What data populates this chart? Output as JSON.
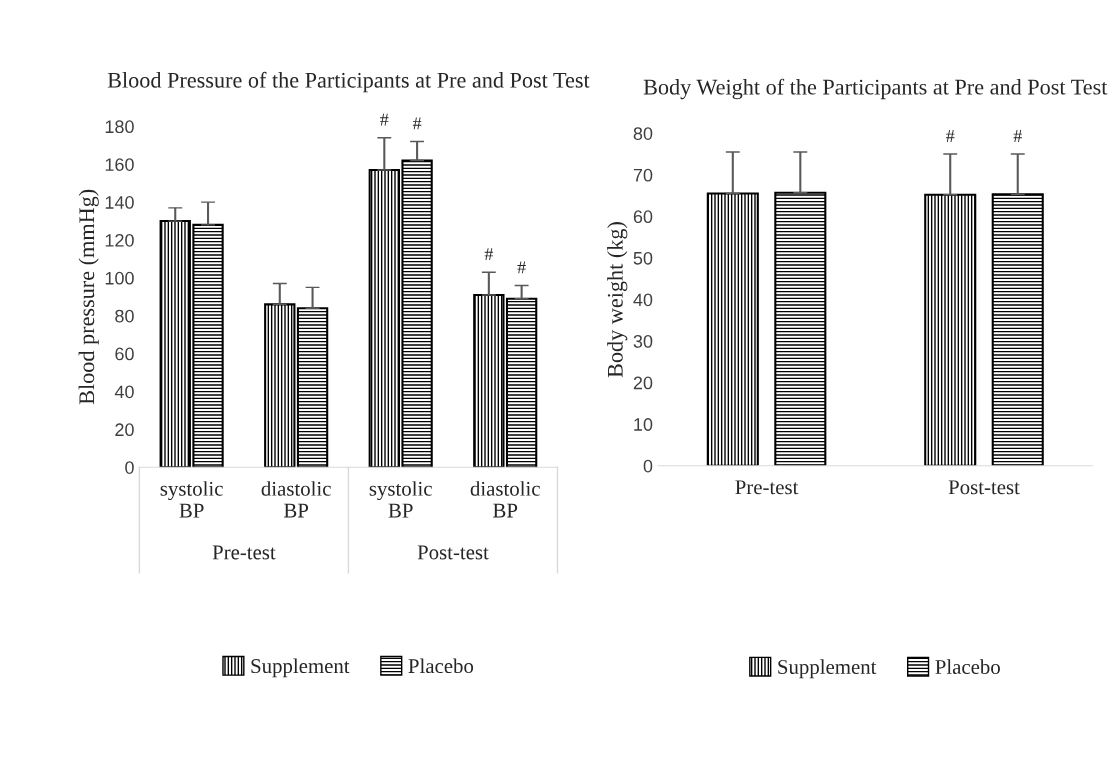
{
  "chart_data": [
    {
      "type": "bar",
      "title": "Blood Pressure of the Participants at Pre and Post Test",
      "ylabel": "Blood pressure (mmHg)",
      "categories": [
        "systolic BP",
        "diastolic BP",
        "systolic BP",
        "diastolic BP"
      ],
      "annotations": [
        "Pre-test",
        "Post-test"
      ],
      "ylim": [
        0,
        180
      ],
      "yticks": [
        0,
        20,
        40,
        60,
        80,
        100,
        120,
        140,
        160,
        180
      ],
      "grid": false,
      "legend": "bottom",
      "series": [
        {
          "name": "Supplement",
          "color": "#000000",
          "values": [
            130,
            86,
            157,
            91
          ],
          "errors": [
            [
              130,
              137
            ],
            [
              86,
              97
            ],
            [
              157,
              174
            ],
            [
              91,
              103
            ]
          ],
          "value_labels": [
            null,
            null,
            "#",
            "#"
          ]
        },
        {
          "name": "Placebo",
          "color": "#000000",
          "values": [
            128,
            84,
            162,
            89
          ],
          "errors": [
            [
              128,
              140
            ],
            [
              84,
              95
            ],
            [
              162,
              172
            ],
            [
              89,
              96
            ]
          ],
          "value_labels": [
            null,
            null,
            "#",
            "#"
          ]
        }
      ]
    },
    {
      "type": "bar",
      "title": "Body Weight of the Participants at Pre and Post Test",
      "ylabel": "Body weight (kg)",
      "categories": [
        "Pre-test",
        "Post-test"
      ],
      "ylim": [
        0,
        80
      ],
      "yticks": [
        0,
        10,
        20,
        30,
        40,
        50,
        60,
        70,
        80
      ],
      "grid": false,
      "legend": "bottom",
      "series": [
        {
          "name": "Supplement",
          "color": "#000000",
          "values": [
            65.5,
            65.2
          ],
          "errors": [
            [
              65.5,
              75.5
            ],
            [
              65.2,
              75
            ]
          ],
          "value_labels": [
            null,
            "#"
          ]
        },
        {
          "name": "Placebo",
          "color": "#000000",
          "values": [
            65.7,
            65.3
          ],
          "errors": [
            [
              65.7,
              75.5
            ],
            [
              65.3,
              75
            ]
          ],
          "value_labels": [
            null,
            "#"
          ]
        }
      ]
    }
  ]
}
